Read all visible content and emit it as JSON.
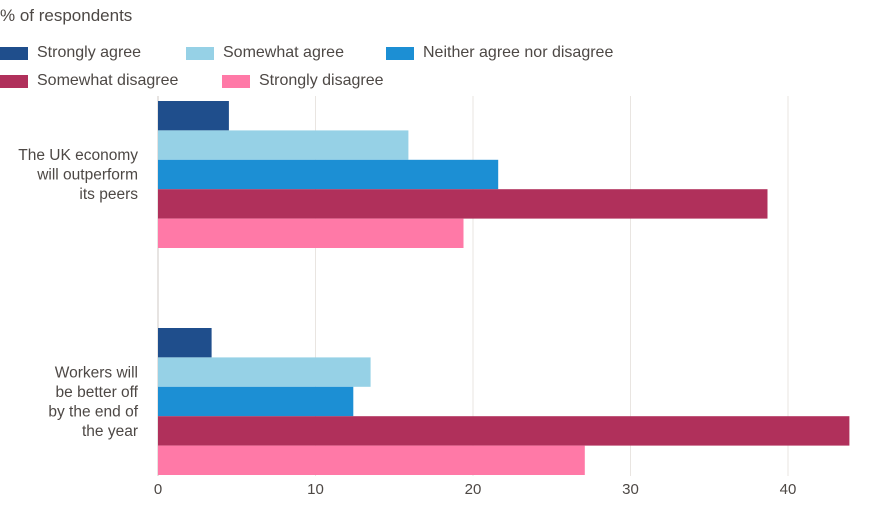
{
  "chart_data": {
    "type": "bar",
    "orientation": "horizontal",
    "title": "",
    "subtitle": "% of respondents",
    "categories": [
      [
        "The UK economy",
        "will outperform",
        "its peers"
      ],
      [
        "Workers will",
        "be better off",
        "by the end of",
        "the year"
      ]
    ],
    "series": [
      {
        "name": "Strongly agree",
        "color": "#1f4e8c",
        "values": [
          4.5,
          3.4
        ]
      },
      {
        "name": "Somewhat agree",
        "color": "#96d1e6",
        "values": [
          15.9,
          13.5
        ]
      },
      {
        "name": "Neither agree nor disagree",
        "color": "#1c8fd4",
        "values": [
          21.6,
          12.4
        ]
      },
      {
        "name": "Somewhat disagree",
        "color": "#b0305b",
        "values": [
          38.7,
          43.9
        ]
      },
      {
        "name": "Strongly disagree",
        "color": "#ff79a7",
        "values": [
          19.4,
          27.1
        ]
      }
    ],
    "xlim": [
      0,
      45
    ],
    "xticks": [
      0,
      10,
      20,
      30,
      40
    ],
    "xlabel": "",
    "ylabel": "",
    "grid": "vertical",
    "legend_position": "top"
  }
}
